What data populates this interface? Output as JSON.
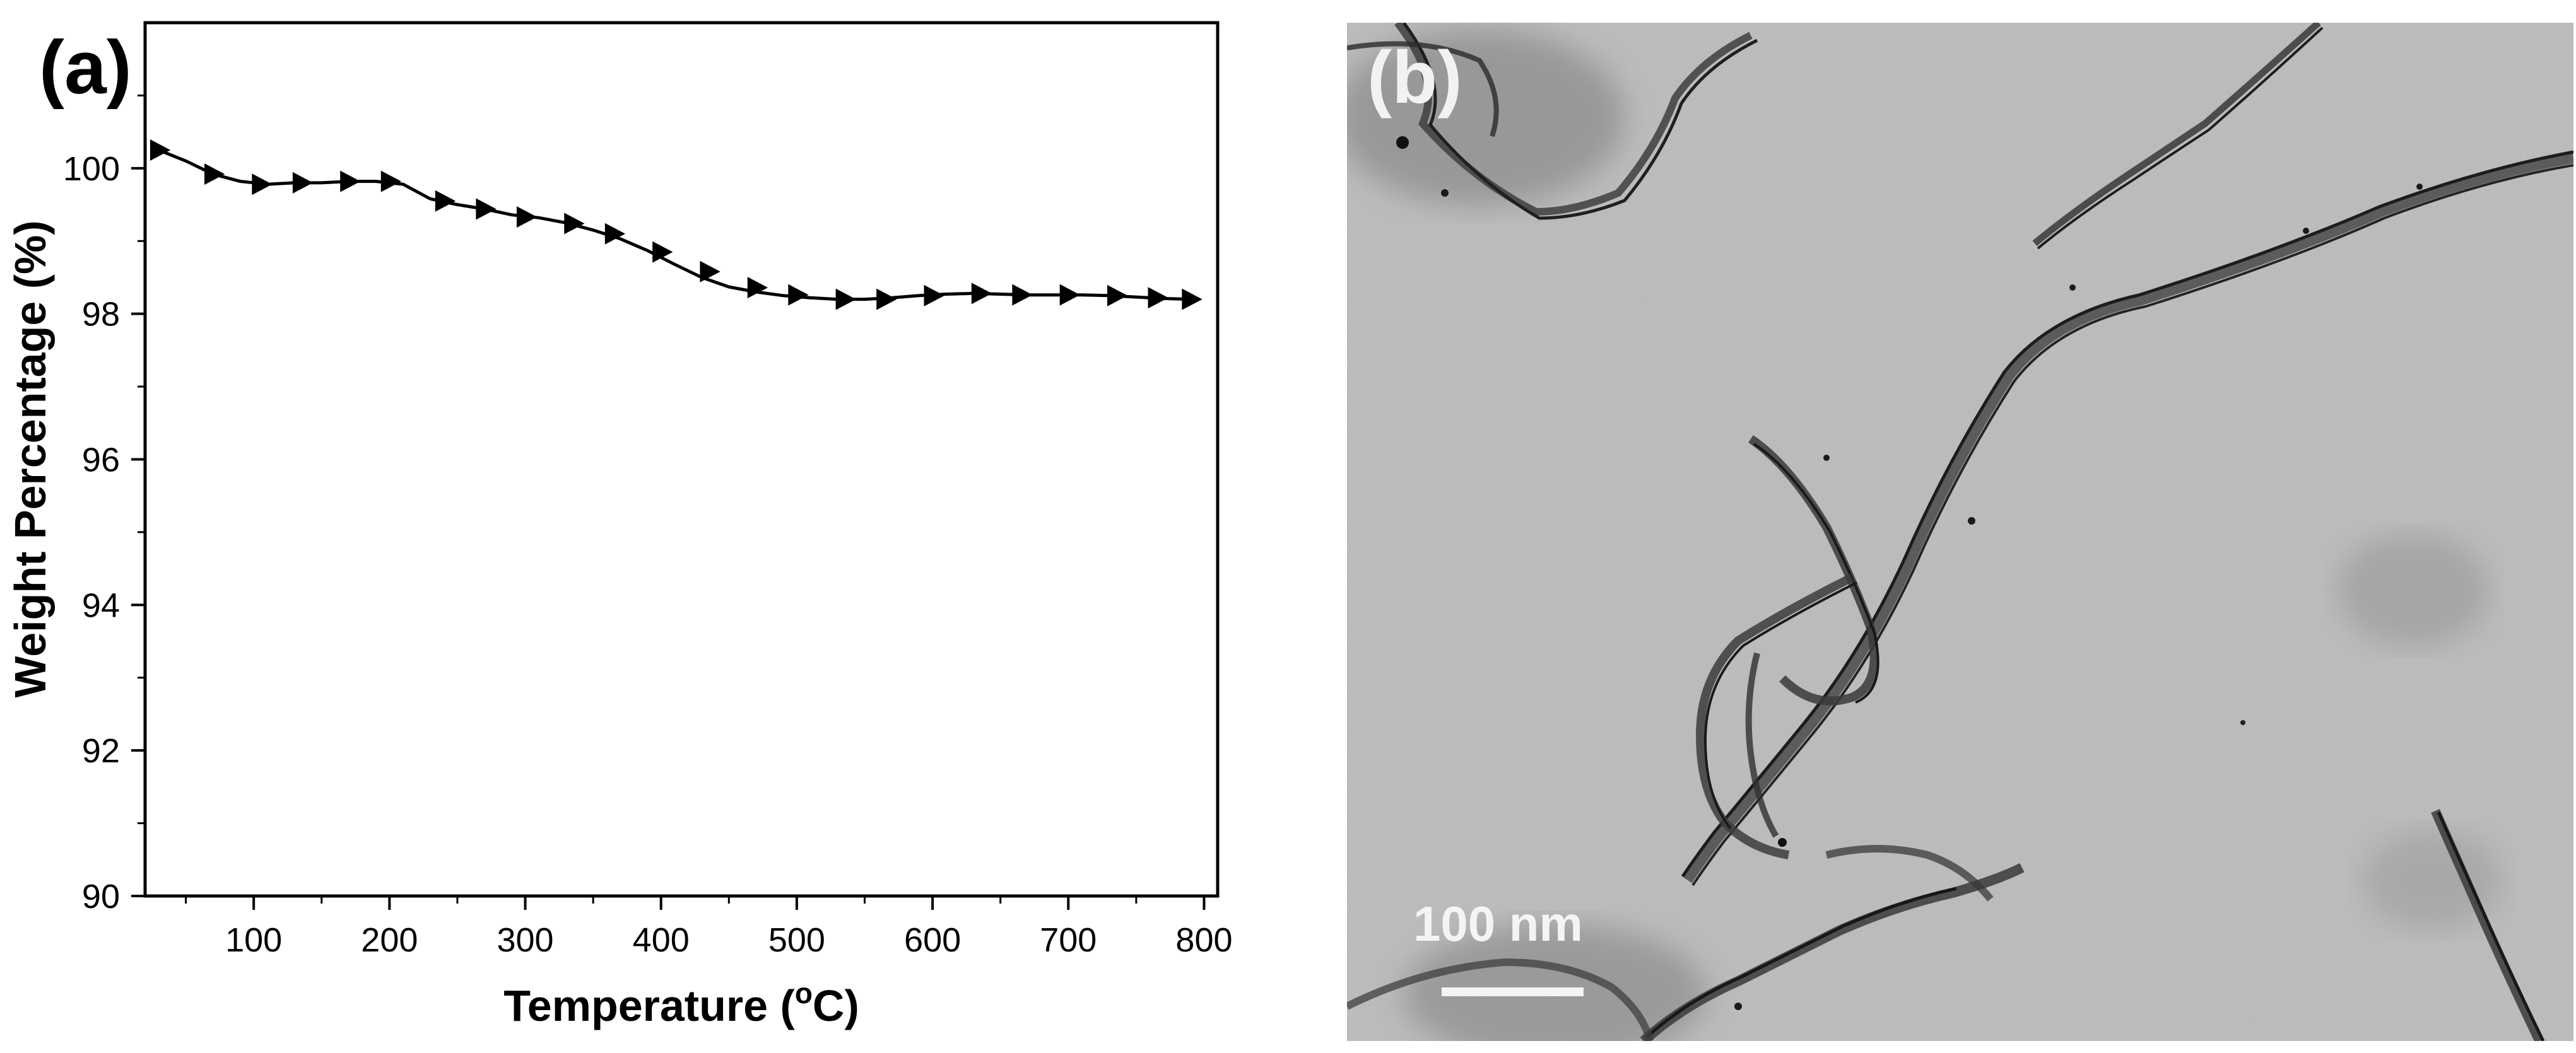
{
  "panel_a": {
    "label": "(a)"
  },
  "panel_b": {
    "label": "(b)",
    "scale_bar_label": "100 nm",
    "image_description_icon": "tem-micrograph"
  },
  "chart_data": {
    "type": "line",
    "title": "",
    "xlabel": "Temperature (",
    "xlabel_unit_superscript": "o",
    "xlabel_unit": "C)",
    "ylabel": "Weight Percentage (%)",
    "xlim": [
      20,
      810
    ],
    "ylim": [
      90,
      102
    ],
    "xticks": [
      100,
      200,
      300,
      400,
      500,
      600,
      700,
      800
    ],
    "yticks": [
      90,
      92,
      94,
      96,
      98,
      100
    ],
    "grid": false,
    "marker": "right-triangle",
    "line_color": "#000000",
    "curve": {
      "x": [
        30,
        50,
        70,
        90,
        110,
        130,
        150,
        170,
        190,
        210,
        230,
        250,
        270,
        290,
        310,
        330,
        350,
        370,
        390,
        410,
        430,
        450,
        470,
        490,
        510,
        530,
        550,
        570,
        590,
        610,
        630,
        650,
        670,
        690,
        710,
        730,
        750,
        770,
        790
      ],
      "y": [
        100.25,
        100.1,
        99.92,
        99.82,
        99.78,
        99.8,
        99.8,
        99.82,
        99.82,
        99.78,
        99.58,
        99.5,
        99.44,
        99.36,
        99.32,
        99.25,
        99.15,
        99.03,
        98.87,
        98.68,
        98.5,
        98.37,
        98.3,
        98.25,
        98.22,
        98.2,
        98.2,
        98.22,
        98.25,
        98.27,
        98.28,
        98.27,
        98.26,
        98.26,
        98.26,
        98.25,
        98.23,
        98.21,
        98.2
      ]
    },
    "markers": {
      "x": [
        30,
        70,
        105,
        135,
        170,
        200,
        240,
        270,
        300,
        335,
        365,
        400,
        435,
        470,
        500,
        535,
        565,
        600,
        635,
        665,
        700,
        735,
        765,
        790
      ],
      "y": [
        100.25,
        99.92,
        99.78,
        99.8,
        99.82,
        99.82,
        99.55,
        99.44,
        99.33,
        99.24,
        99.1,
        98.85,
        98.58,
        98.36,
        98.26,
        98.2,
        98.2,
        98.25,
        98.28,
        98.26,
        98.26,
        98.25,
        98.22,
        98.2
      ]
    }
  }
}
